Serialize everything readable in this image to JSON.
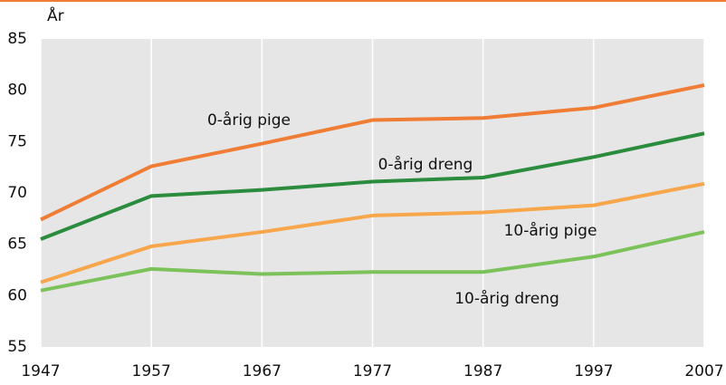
{
  "chart_data": {
    "type": "line",
    "y_label": "År",
    "x": [
      1947,
      1957,
      1967,
      1977,
      1987,
      1997,
      2007
    ],
    "series": [
      {
        "name": "0-årig pige",
        "color": "#ef7d35",
        "values": [
          67.4,
          72.6,
          74.8,
          77.1,
          77.3,
          78.3,
          80.5
        ]
      },
      {
        "name": "0-årig dreng",
        "color": "#2b8c3e",
        "values": [
          65.5,
          69.7,
          70.3,
          71.1,
          71.5,
          73.5,
          75.8
        ]
      },
      {
        "name": "10-årig pige",
        "color": "#f7a64b",
        "values": [
          61.3,
          64.8,
          66.2,
          67.8,
          68.1,
          68.8,
          70.9
        ]
      },
      {
        "name": "10-årig dreng",
        "color": "#7cc25a",
        "values": [
          60.5,
          62.6,
          62.1,
          62.3,
          62.3,
          63.8,
          66.2
        ]
      }
    ],
    "xlim": [
      1947,
      2007
    ],
    "xticks": [
      1947,
      1957,
      1967,
      1977,
      1987,
      1997,
      2007
    ],
    "ylim": [
      55,
      85
    ],
    "yticks": [
      55,
      60,
      65,
      70,
      75,
      80,
      85
    ],
    "grid": "x"
  }
}
